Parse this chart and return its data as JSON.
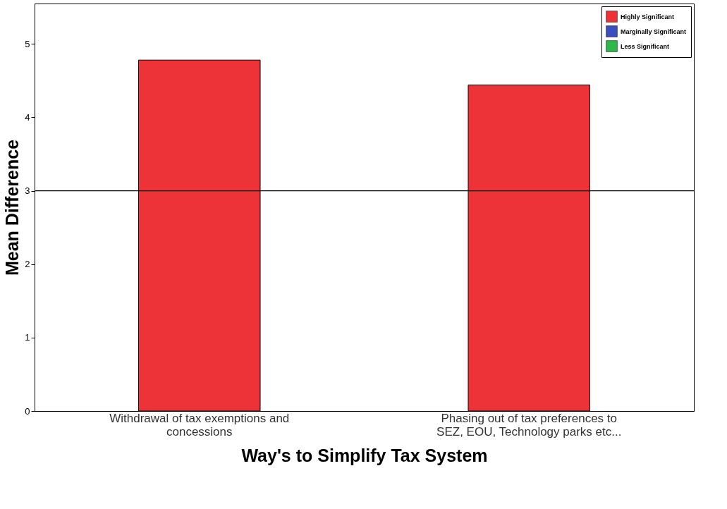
{
  "chart_data": {
    "type": "bar",
    "xlabel": "Way's to Simplify Tax System",
    "ylabel": "Mean Difference",
    "categories": [
      "Withdrawal of tax exemptions and\nconcessions",
      "Phasing out of tax preferences to\nSEZ, EOU,  Technology parks etc..."
    ],
    "series": [
      {
        "name": "Highly Significant",
        "color": "#ee3338",
        "values": [
          4.78,
          4.44
        ]
      },
      {
        "name": "Marginally Significant",
        "color": "#3a4ebf",
        "values": [
          null,
          null
        ]
      },
      {
        "name": "Less Significant",
        "color": "#2db84a",
        "values": [
          null,
          null
        ]
      }
    ],
    "ylim": [
      0,
      5.55
    ],
    "yticks": [
      0,
      1,
      2,
      3,
      4,
      5
    ],
    "ref_lines": [
      {
        "axis": "y",
        "value": 3,
        "color": "#000000"
      }
    ],
    "grid": false,
    "legend": "top right"
  }
}
